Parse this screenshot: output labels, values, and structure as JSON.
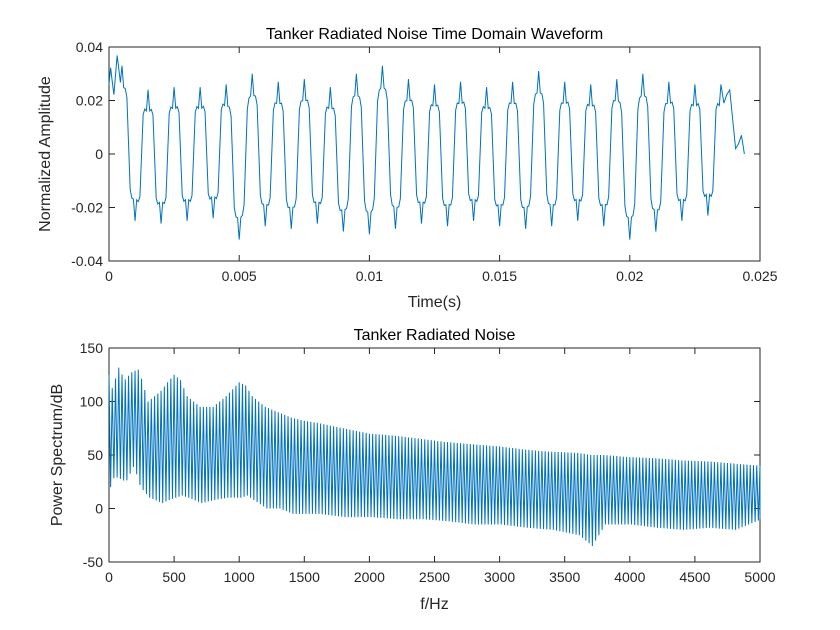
{
  "colors": {
    "line": "#0072bd",
    "axes": "#262626",
    "background": "#ffffff"
  },
  "chart_data": [
    {
      "type": "line",
      "title": "Tanker Radiated Noise Time Domain Waveform",
      "xlabel": "Time(s)",
      "ylabel": "Normalized Amplitude",
      "xlim": [
        0,
        0.025
      ],
      "ylim": [
        -0.04,
        0.04
      ],
      "xticks": [
        0,
        0.005,
        0.01,
        0.015,
        0.02,
        0.025
      ],
      "xtick_labels": [
        "0",
        "0.005",
        "0.01",
        "0.015",
        "0.02",
        "0.025"
      ],
      "yticks": [
        -0.04,
        -0.02,
        0,
        0.02,
        0.04
      ],
      "ytick_labels": [
        "-0.04",
        "-0.02",
        "0",
        "0.02",
        "0.04"
      ],
      "grid": false,
      "series": [
        {
          "x": [
            0,
            0.0005,
            0.001,
            0.0015,
            0.002,
            0.0025,
            0.003,
            0.0035,
            0.004,
            0.0045,
            0.005,
            0.0055,
            0.006,
            0.0065,
            0.007,
            0.0075,
            0.008,
            0.0085,
            0.009,
            0.0095,
            0.01,
            0.0105,
            0.011,
            0.0115,
            0.012,
            0.0125,
            0.013,
            0.0135,
            0.014,
            0.0145,
            0.015,
            0.0155,
            0.016,
            0.0165,
            0.017,
            0.0175,
            0.018,
            0.0185,
            0.019,
            0.0195,
            0.02,
            0.0205,
            0.021,
            0.0215,
            0.022,
            0.0225,
            0.023,
            0.0235,
            0.0244
          ],
          "y": [
            0.026,
            0.033,
            -0.025,
            0.024,
            -0.026,
            0.025,
            -0.025,
            0.025,
            -0.024,
            0.026,
            -0.032,
            0.03,
            -0.027,
            0.027,
            -0.028,
            0.028,
            -0.026,
            0.025,
            -0.029,
            0.03,
            -0.03,
            0.033,
            -0.028,
            0.028,
            -0.026,
            0.026,
            -0.027,
            0.027,
            -0.025,
            0.025,
            -0.027,
            0.027,
            -0.028,
            0.031,
            -0.027,
            0.027,
            -0.025,
            0.026,
            -0.027,
            0.028,
            -0.032,
            0.03,
            -0.029,
            0.027,
            -0.025,
            0.026,
            -0.023,
            0.026,
            0.0
          ]
        }
      ]
    },
    {
      "type": "line",
      "title": "Tanker Radiated Noise",
      "xlabel": "f/Hz",
      "ylabel": "Power Spectrum/dB",
      "xlim": [
        0,
        5000
      ],
      "ylim": [
        -50,
        150
      ],
      "xticks": [
        0,
        500,
        1000,
        1500,
        2000,
        2500,
        3000,
        3500,
        4000,
        4500,
        5000
      ],
      "xtick_labels": [
        "0",
        "500",
        "1000",
        "1500",
        "2000",
        "2500",
        "3000",
        "3500",
        "4000",
        "4500",
        "5000"
      ],
      "yticks": [
        -50,
        0,
        50,
        100,
        150
      ],
      "ytick_labels": [
        "-50",
        "0",
        "50",
        "100",
        "150"
      ],
      "grid": false,
      "series": [
        {
          "x": [
            0,
            30,
            70,
            120,
            180,
            230,
            300,
            400,
            450,
            500,
            550,
            600,
            700,
            800,
            900,
            1000,
            1050,
            1100,
            1200,
            1300,
            1400,
            1500,
            1600,
            1800,
            2000,
            2200,
            2400,
            2600,
            2800,
            3000,
            3200,
            3400,
            3600,
            3700,
            3800,
            4000,
            4200,
            4400,
            4600,
            4800,
            5000
          ],
          "peaks": [
            125,
            110,
            133,
            120,
            128,
            130,
            100,
            110,
            118,
            125,
            120,
            105,
            95,
            95,
            105,
            118,
            115,
            105,
            95,
            90,
            85,
            82,
            80,
            75,
            70,
            68,
            65,
            62,
            60,
            58,
            55,
            53,
            52,
            50,
            50,
            48,
            47,
            45,
            44,
            42,
            40
          ],
          "troughs": [
            20,
            30,
            28,
            25,
            40,
            20,
            10,
            5,
            8,
            10,
            12,
            10,
            5,
            8,
            10,
            10,
            12,
            8,
            0,
            0,
            -5,
            -5,
            -5,
            -8,
            -8,
            -10,
            -10,
            -12,
            -15,
            -15,
            -18,
            -20,
            -25,
            -35,
            -15,
            -15,
            -18,
            -20,
            -18,
            -20,
            -10
          ]
        }
      ]
    }
  ]
}
